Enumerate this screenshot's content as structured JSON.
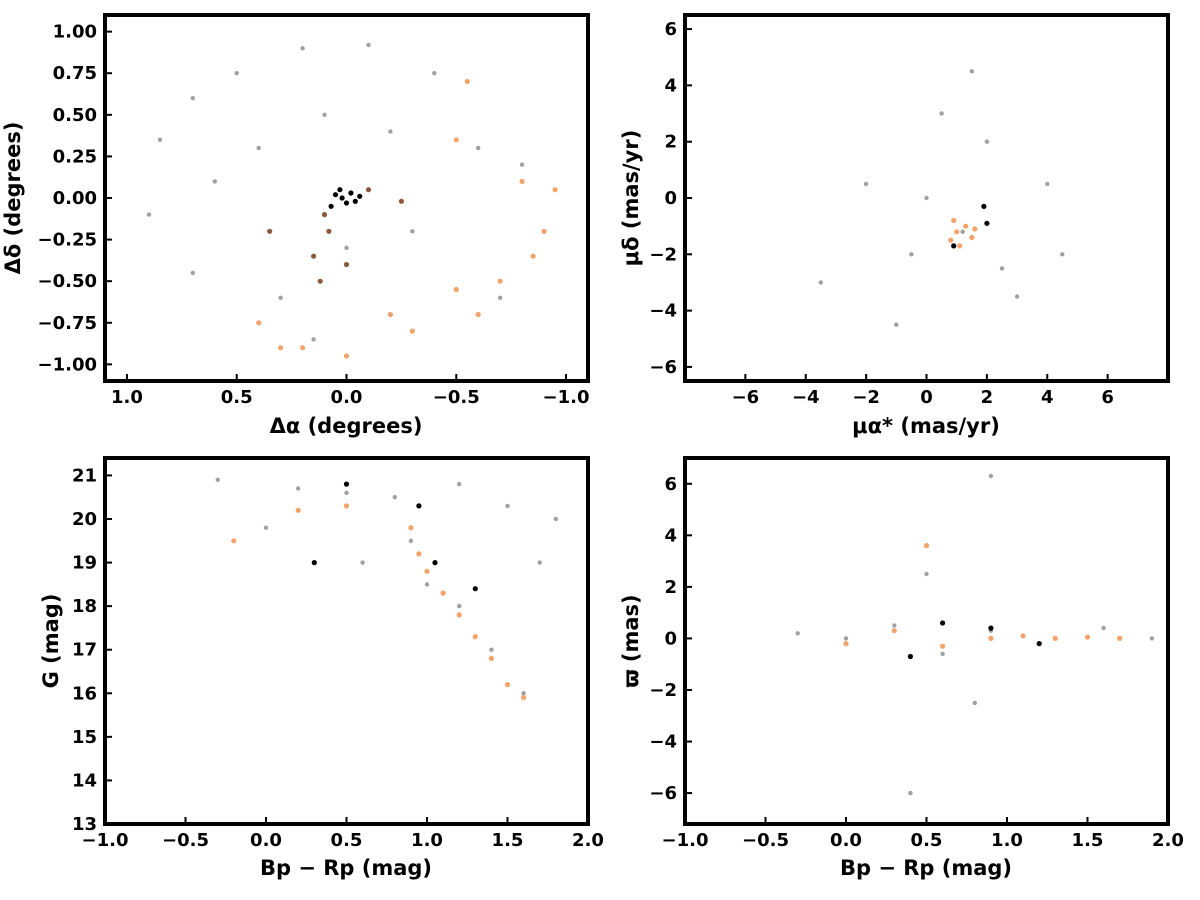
{
  "chart_data": [
    {
      "type": "scatter",
      "panel": "top-left",
      "xlabel": "Δα (degrees)",
      "ylabel": "Δδ (degrees)",
      "xlim": [
        1.1,
        -1.1
      ],
      "ylim": [
        -1.1,
        1.1
      ],
      "xticks": [
        1.0,
        0.5,
        0.0,
        -0.5,
        -1.0
      ],
      "xtick_labels": [
        "1.0",
        "0.5",
        "0.0",
        "−0.5",
        "−1.0"
      ],
      "yticks": [
        1.0,
        0.75,
        0.5,
        0.25,
        0.0,
        -0.25,
        -0.5,
        -0.75,
        -1.0
      ],
      "ytick_labels": [
        "1.00",
        "0.75",
        "0.50",
        "0.25",
        "0.00",
        "−0.25",
        "−0.50",
        "−0.75",
        "−1.00"
      ],
      "grid": false,
      "series": [
        {
          "color": "#a0a0a0",
          "points": [
            [
              0.85,
              0.35
            ],
            [
              0.7,
              0.6
            ],
            [
              0.5,
              0.75
            ],
            [
              0.2,
              0.9
            ],
            [
              -0.1,
              0.92
            ],
            [
              -0.4,
              0.75
            ],
            [
              0.9,
              -0.1
            ],
            [
              0.7,
              -0.45
            ],
            [
              0.3,
              -0.6
            ],
            [
              0.0,
              -0.3
            ],
            [
              -0.3,
              -0.2
            ],
            [
              -0.6,
              0.3
            ],
            [
              -0.8,
              0.2
            ],
            [
              0.4,
              0.3
            ],
            [
              0.1,
              0.5
            ],
            [
              -0.2,
              0.4
            ],
            [
              0.6,
              0.1
            ],
            [
              -0.7,
              -0.6
            ],
            [
              -0.9,
              -0.2
            ],
            [
              0.15,
              -0.85
            ]
          ]
        },
        {
          "color": "#f4a46a",
          "points": [
            [
              -0.5,
              -0.55
            ],
            [
              -0.7,
              -0.5
            ],
            [
              -0.9,
              -0.2
            ],
            [
              -0.95,
              0.05
            ],
            [
              -0.3,
              -0.8
            ],
            [
              0.0,
              -0.95
            ],
            [
              0.2,
              -0.9
            ],
            [
              0.4,
              -0.75
            ],
            [
              -0.8,
              0.1
            ],
            [
              -0.6,
              -0.7
            ],
            [
              -0.5,
              0.35
            ],
            [
              -0.55,
              0.7
            ],
            [
              -0.85,
              -0.35
            ],
            [
              -0.2,
              -0.7
            ],
            [
              0.3,
              -0.9
            ]
          ]
        },
        {
          "color": "#8b5a3c",
          "points": [
            [
              0.08,
              -0.2
            ],
            [
              0.15,
              -0.35
            ],
            [
              0.1,
              -0.1
            ],
            [
              -0.1,
              0.05
            ],
            [
              -0.25,
              -0.02
            ],
            [
              0.35,
              -0.2
            ],
            [
              0.0,
              -0.4
            ],
            [
              0.12,
              -0.5
            ]
          ]
        },
        {
          "color": "#000000",
          "points": [
            [
              0.05,
              0.02
            ],
            [
              0.02,
              0.0
            ],
            [
              -0.02,
              0.03
            ],
            [
              0.0,
              -0.03
            ],
            [
              0.07,
              -0.05
            ],
            [
              -0.04,
              -0.02
            ],
            [
              0.03,
              0.05
            ],
            [
              -0.06,
              0.01
            ]
          ]
        }
      ]
    },
    {
      "type": "scatter",
      "panel": "top-right",
      "xlabel": "μα* (mas/yr)",
      "ylabel": "μδ (mas/yr)",
      "xlim": [
        -8,
        8
      ],
      "ylim": [
        -6.5,
        6.5
      ],
      "xticks": [
        -6,
        -4,
        -2,
        0,
        2,
        4,
        6
      ],
      "xtick_labels": [
        "−6",
        "−4",
        "−2",
        "0",
        "2",
        "4",
        "6"
      ],
      "yticks": [
        6,
        4,
        2,
        0,
        -2,
        -4,
        -6
      ],
      "ytick_labels": [
        "6",
        "4",
        "2",
        "0",
        "−2",
        "−4",
        "−6"
      ],
      "grid": false,
      "series": [
        {
          "color": "#a0a0a0",
          "points": [
            [
              1.2,
              -1.2
            ],
            [
              0.0,
              0.0
            ],
            [
              2.5,
              -2.5
            ],
            [
              -2.0,
              0.5
            ],
            [
              4.0,
              0.5
            ],
            [
              3.0,
              -3.5
            ],
            [
              0.5,
              3.0
            ],
            [
              -3.5,
              -3.0
            ],
            [
              1.5,
              4.5
            ],
            [
              -1.0,
              -4.5
            ],
            [
              4.5,
              -2.0
            ],
            [
              2.0,
              2.0
            ],
            [
              -0.5,
              -2.0
            ]
          ]
        },
        {
          "color": "#f4a46a",
          "points": [
            [
              1.0,
              -1.2
            ],
            [
              1.3,
              -1.0
            ],
            [
              0.8,
              -1.5
            ],
            [
              1.5,
              -1.4
            ],
            [
              0.9,
              -0.8
            ],
            [
              1.6,
              -1.1
            ],
            [
              1.1,
              -1.7
            ]
          ]
        },
        {
          "color": "#000000",
          "points": [
            [
              1.9,
              -0.3
            ],
            [
              2.0,
              -0.9
            ],
            [
              0.9,
              -1.7
            ]
          ]
        }
      ]
    },
    {
      "type": "scatter",
      "panel": "bottom-left",
      "xlabel": "Bp − Rp (mag)",
      "ylabel": "G (mag)",
      "xlim": [
        -1.0,
        2.0
      ],
      "ylim": [
        13,
        21.4
      ],
      "xticks": [
        -1.0,
        -0.5,
        0.0,
        0.5,
        1.0,
        1.5,
        2.0
      ],
      "xtick_labels": [
        "−1.0",
        "−0.5",
        "0.0",
        "0.5",
        "1.0",
        "1.5",
        "2.0"
      ],
      "yticks": [
        21,
        20,
        19,
        18,
        17,
        16,
        15,
        14,
        13
      ],
      "ytick_labels": [
        "21",
        "20",
        "19",
        "18",
        "17",
        "16",
        "15",
        "14",
        "13"
      ],
      "grid": false,
      "series": [
        {
          "color": "#a0a0a0",
          "points": [
            [
              0.2,
              20.7
            ],
            [
              0.5,
              20.6
            ],
            [
              0.8,
              20.5
            ],
            [
              1.2,
              20.8
            ],
            [
              1.5,
              20.3
            ],
            [
              1.8,
              20.0
            ],
            [
              0.9,
              19.5
            ],
            [
              1.0,
              18.5
            ],
            [
              1.2,
              18.0
            ],
            [
              1.4,
              17.0
            ],
            [
              1.6,
              16.0
            ],
            [
              0.6,
              19.0
            ],
            [
              -0.3,
              20.9
            ],
            [
              0.0,
              19.8
            ],
            [
              1.7,
              19.0
            ]
          ]
        },
        {
          "color": "#f4a46a",
          "points": [
            [
              0.95,
              19.2
            ],
            [
              1.0,
              18.8
            ],
            [
              1.1,
              18.3
            ],
            [
              1.2,
              17.8
            ],
            [
              1.3,
              17.3
            ],
            [
              1.4,
              16.8
            ],
            [
              1.5,
              16.2
            ],
            [
              1.6,
              15.9
            ],
            [
              0.5,
              20.3
            ],
            [
              0.2,
              20.2
            ],
            [
              -0.2,
              19.5
            ],
            [
              0.9,
              19.8
            ]
          ]
        },
        {
          "color": "#000000",
          "points": [
            [
              0.95,
              20.3
            ],
            [
              1.05,
              19.0
            ],
            [
              1.3,
              18.4
            ],
            [
              0.3,
              19.0
            ],
            [
              0.5,
              20.8
            ]
          ]
        }
      ]
    },
    {
      "type": "scatter",
      "panel": "bottom-right",
      "xlabel": "Bp − Rp (mag)",
      "ylabel": "ϖ (mas)",
      "xlim": [
        -1.0,
        2.0
      ],
      "ylim": [
        -7.2,
        7.0
      ],
      "xticks": [
        -1.0,
        -0.5,
        0.0,
        0.5,
        1.0,
        1.5,
        2.0
      ],
      "xtick_labels": [
        "−1.0",
        "−0.5",
        "0.0",
        "0.5",
        "1.0",
        "1.5",
        "2.0"
      ],
      "yticks": [
        6,
        4,
        2,
        0,
        -2,
        -4,
        -6
      ],
      "ytick_labels": [
        "6",
        "4",
        "2",
        "0",
        "−2",
        "−4",
        "−6"
      ],
      "grid": false,
      "series": [
        {
          "color": "#a0a0a0",
          "points": [
            [
              0.0,
              0.0
            ],
            [
              0.3,
              0.5
            ],
            [
              0.6,
              -0.6
            ],
            [
              0.9,
              0.3
            ],
            [
              1.2,
              -0.2
            ],
            [
              1.6,
              0.4
            ],
            [
              1.9,
              0.0
            ],
            [
              0.5,
              2.5
            ],
            [
              0.8,
              -2.5
            ],
            [
              -0.3,
              0.2
            ],
            [
              0.9,
              6.3
            ],
            [
              0.4,
              -6.0
            ]
          ]
        },
        {
          "color": "#f4a46a",
          "points": [
            [
              0.9,
              0.0
            ],
            [
              1.1,
              0.1
            ],
            [
              1.3,
              0.0
            ],
            [
              1.5,
              0.05
            ],
            [
              1.7,
              0.0
            ],
            [
              0.6,
              -0.3
            ],
            [
              0.3,
              0.3
            ],
            [
              0.0,
              -0.2
            ],
            [
              0.5,
              3.6
            ]
          ]
        },
        {
          "color": "#000000",
          "points": [
            [
              0.9,
              0.4
            ],
            [
              0.4,
              -0.7
            ],
            [
              1.2,
              -0.2
            ],
            [
              0.6,
              0.6
            ]
          ]
        }
      ]
    }
  ]
}
